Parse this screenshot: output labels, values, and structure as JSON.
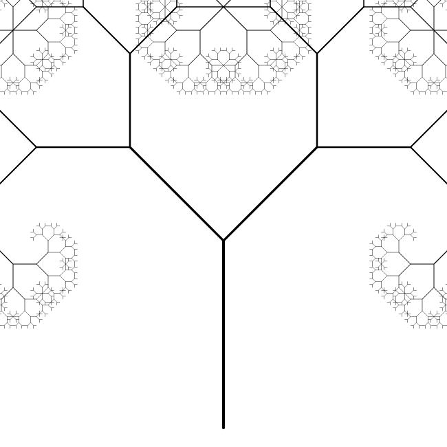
{
  "diagram": {
    "type": "fractal-tree",
    "background_color": "#ffffff",
    "line_color": "#000000",
    "recursion_depth": 12,
    "branch_angle_deg": 45,
    "branch_length_ratio": 0.7071,
    "trunk_direction": "up",
    "labels": []
  }
}
